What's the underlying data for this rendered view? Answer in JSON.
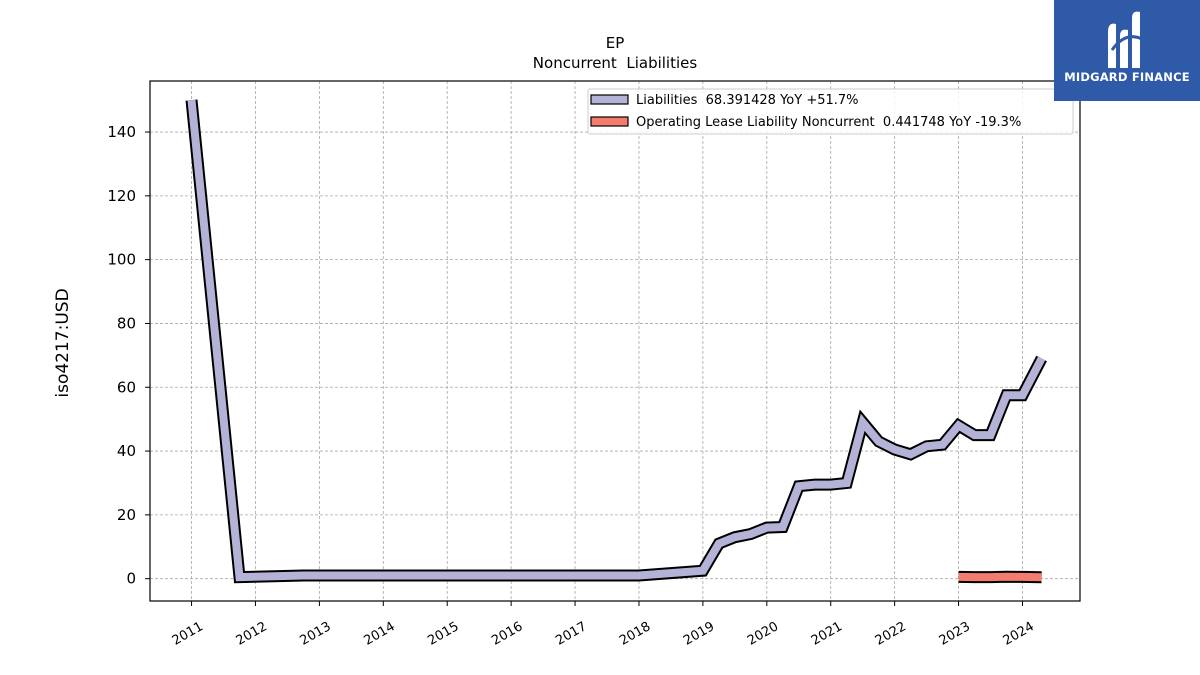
{
  "logo": {
    "text": "MIDGARD FINANCE",
    "icon": "midgard-m-logo-icon",
    "background": "#2f5aa8"
  },
  "chart_data": {
    "type": "line",
    "title": "EP",
    "subtitle": "Noncurrent  Liabilities",
    "ylabel": "iso4217:USD",
    "xlabel": "",
    "ylim": [
      -7,
      156
    ],
    "xlim": [
      2010.35,
      2024.9
    ],
    "yticks": [
      0,
      20,
      40,
      60,
      80,
      100,
      120,
      140
    ],
    "xticks": [
      "2011",
      "2012",
      "2013",
      "2014",
      "2015",
      "2016",
      "2017",
      "2018",
      "2019",
      "2020",
      "2021",
      "2022",
      "2023",
      "2024"
    ],
    "grid": true,
    "legend_position": "top-right",
    "series": [
      {
        "name": "Liabilities  68.391428 YoY +51.7%",
        "color": "#b4b2d6",
        "points": [
          [
            2011.0,
            150
          ],
          [
            2011.75,
            0.5
          ],
          [
            2012.75,
            1
          ],
          [
            2018.0,
            1
          ],
          [
            2019.0,
            2.5
          ],
          [
            2019.25,
            11
          ],
          [
            2019.5,
            13
          ],
          [
            2019.75,
            14
          ],
          [
            2020.0,
            16
          ],
          [
            2020.25,
            16.2
          ],
          [
            2020.5,
            29
          ],
          [
            2020.75,
            29.5
          ],
          [
            2021.0,
            29.5
          ],
          [
            2021.25,
            30
          ],
          [
            2021.5,
            49
          ],
          [
            2021.75,
            43
          ],
          [
            2022.0,
            40.5
          ],
          [
            2022.25,
            39
          ],
          [
            2022.5,
            41.5
          ],
          [
            2022.75,
            42
          ],
          [
            2023.0,
            48
          ],
          [
            2023.25,
            45
          ],
          [
            2023.5,
            45
          ],
          [
            2023.75,
            57.5
          ],
          [
            2024.0,
            57.5
          ],
          [
            2024.3,
            69
          ]
        ]
      },
      {
        "name": "Operating Lease Liability Noncurrent  0.441748 YoY -19.3%",
        "color": "#f47c6e",
        "points": [
          [
            2023.0,
            0.55
          ],
          [
            2023.25,
            0.5
          ],
          [
            2023.5,
            0.5
          ],
          [
            2023.75,
            0.6
          ],
          [
            2024.0,
            0.55
          ],
          [
            2024.3,
            0.44
          ]
        ]
      }
    ]
  }
}
